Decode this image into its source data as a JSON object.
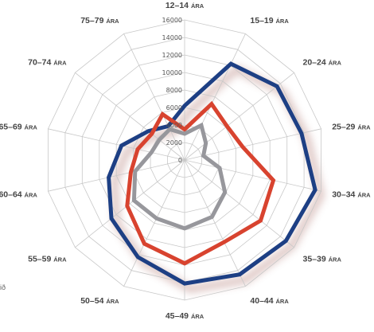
{
  "chart_data": {
    "type": "radar",
    "title": "",
    "categories": [
      {
        "range": "12–14",
        "suffix": "ÁRA"
      },
      {
        "range": "15–19",
        "suffix": "ÁRA"
      },
      {
        "range": "20–24",
        "suffix": "ÁRA"
      },
      {
        "range": "25–29",
        "suffix": "ÁRA"
      },
      {
        "range": "30–34",
        "suffix": "ÁRA"
      },
      {
        "range": "35–39",
        "suffix": "ÁRA"
      },
      {
        "range": "40–44",
        "suffix": "ÁRA"
      },
      {
        "range": "45–49",
        "suffix": "ÁRA"
      },
      {
        "range": "50–54",
        "suffix": "ÁRA"
      },
      {
        "range": "55–59",
        "suffix": "ÁRA"
      },
      {
        "range": "60–64",
        "suffix": "ÁRA"
      },
      {
        "range": "65–69",
        "suffix": "ÁRA"
      },
      {
        "range": "70–74",
        "suffix": "ÁRA"
      },
      {
        "range": "75–79",
        "suffix": "ÁRA"
      }
    ],
    "radial_ticks": [
      "0",
      "2000",
      "4000",
      "6000",
      "8000",
      "10000",
      "12000",
      "14000",
      "16000"
    ],
    "rmax": 16000,
    "grid": true,
    "series": [
      {
        "color": "#1d3f84",
        "values": [
          6200,
          12200,
          13500,
          13700,
          15300,
          14800,
          14500,
          14100,
          12300,
          10700,
          8900,
          7400,
          5300,
          4300
        ]
      },
      {
        "color": "#d8432f",
        "values": [
          3500,
          7100,
          6200,
          6800,
          10400,
          11100,
          10400,
          11800,
          10600,
          8400,
          6300,
          5500,
          4800,
          5800
        ]
      },
      {
        "color": "#97979c",
        "values": [
          3000,
          4400,
          3100,
          2200,
          4100,
          5900,
          7200,
          7800,
          7400,
          7400,
          5800,
          3900,
          3700,
          3900
        ]
      }
    ]
  },
  "footer": {
    "stray_text": "ið"
  }
}
